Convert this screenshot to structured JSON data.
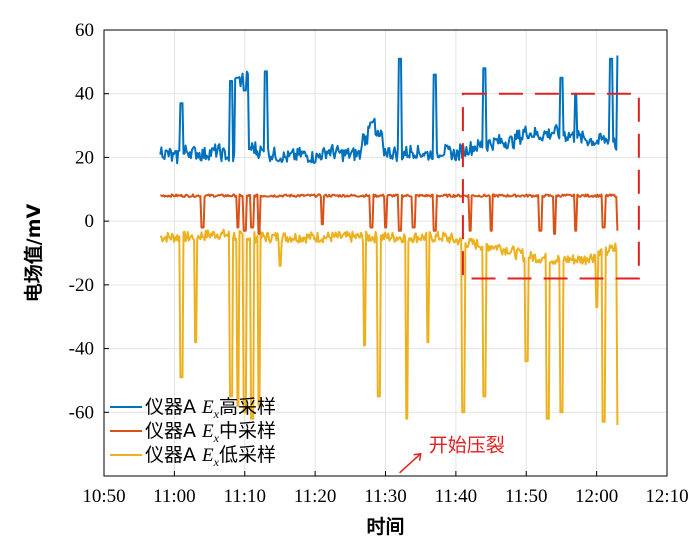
{
  "chart_data": {
    "type": "line",
    "title": "",
    "xlabel": "时间",
    "ylabel": "电场值/mV",
    "xlim": [
      "10:50",
      "12:10"
    ],
    "ylim": [
      -80,
      60
    ],
    "x_ticks": [
      "10:50",
      "11:00",
      "11:10",
      "11:20",
      "11:30",
      "11:40",
      "11:50",
      "12:00",
      "12:10"
    ],
    "y_ticks": [
      "60",
      "40",
      "20",
      "0",
      "-20",
      "-40",
      "-60"
    ],
    "grid": true,
    "legend_position": "bottom-left",
    "series": [
      {
        "legend_prefix": "仪器A",
        "legend_var": "E",
        "legend_sub": "x",
        "legend_suffix": "高采样",
        "color": "#0072BD",
        "baseline_note": "~22 mV noisy baseline, rising to ~27 mV after 11:43",
        "x": [
          "10:58",
          "11:00",
          "11:02",
          "11:04",
          "11:06",
          "11:08",
          "11:09",
          "11:10",
          "11:11",
          "11:12",
          "11:14",
          "11:16",
          "11:18",
          "11:20",
          "11:22",
          "11:24",
          "11:26",
          "11:28",
          "11:30",
          "11:32",
          "11:34",
          "11:36",
          "11:38",
          "11:40",
          "11:42",
          "11:44",
          "11:46",
          "11:48",
          "11:50",
          "11:52",
          "11:54",
          "11:56",
          "11:58",
          "12:00",
          "12:02",
          "12:03"
        ],
        "y": [
          22,
          20,
          22,
          21,
          22,
          20,
          44,
          45,
          23,
          22,
          21,
          20,
          21,
          20,
          22,
          21,
          21,
          31,
          22,
          21,
          22,
          21,
          22,
          21,
          23,
          24,
          25,
          25,
          28,
          27,
          28,
          27,
          26,
          25,
          26,
          24
        ],
        "spikes": [
          {
            "x": "11:01",
            "y": 37
          },
          {
            "x": "11:08",
            "y": 44
          },
          {
            "x": "11:09",
            "y": 45
          },
          {
            "x": "11:10",
            "y": 41
          },
          {
            "x": "11:13",
            "y": 47
          },
          {
            "x": "11:28",
            "y": 31
          },
          {
            "x": "11:32",
            "y": 51
          },
          {
            "x": "11:37",
            "y": 46
          },
          {
            "x": "11:44",
            "y": 48
          },
          {
            "x": "11:55",
            "y": 45
          },
          {
            "x": "11:57",
            "y": 40
          },
          {
            "x": "12:02",
            "y": 51
          },
          {
            "x": "12:03",
            "y": 52
          }
        ]
      },
      {
        "legend_prefix": "仪器A",
        "legend_var": "E",
        "legend_sub": "x",
        "legend_suffix": "中采样",
        "color": "#D95319",
        "baseline": 8,
        "x_start": "10:58",
        "x_end": "12:03",
        "dips": [
          {
            "x": "11:04",
            "y": -2
          },
          {
            "x": "11:09",
            "y": -2
          },
          {
            "x": "11:10",
            "y": -3
          },
          {
            "x": "11:11",
            "y": -2
          },
          {
            "x": "11:12",
            "y": -4
          },
          {
            "x": "11:21",
            "y": -1
          },
          {
            "x": "11:28",
            "y": -2
          },
          {
            "x": "11:30",
            "y": -2
          },
          {
            "x": "11:32",
            "y": -3
          },
          {
            "x": "11:34",
            "y": -2
          },
          {
            "x": "11:37",
            "y": -3
          },
          {
            "x": "11:42",
            "y": -3
          },
          {
            "x": "11:45",
            "y": -3
          },
          {
            "x": "11:52",
            "y": -3
          },
          {
            "x": "11:54",
            "y": -4
          },
          {
            "x": "11:57",
            "y": -3
          },
          {
            "x": "12:01",
            "y": -2
          },
          {
            "x": "12:03",
            "y": -3
          }
        ]
      },
      {
        "legend_prefix": "仪器A",
        "legend_var": "E",
        "legend_sub": "x",
        "legend_suffix": "低采样",
        "color": "#EDB120",
        "x": [
          "10:58",
          "11:02",
          "11:06",
          "11:10",
          "11:14",
          "11:18",
          "11:22",
          "11:26",
          "11:30",
          "11:34",
          "11:38",
          "11:42",
          "11:46",
          "11:50",
          "11:54",
          "11:58",
          "12:02",
          "12:03"
        ],
        "y": [
          -5,
          -5,
          -4,
          -5,
          -5,
          -5,
          -5,
          -5,
          -5,
          -5,
          -5,
          -7,
          -8,
          -11,
          -12,
          -12,
          -9,
          -8
        ],
        "dips": [
          {
            "x": "11:01",
            "y": -49
          },
          {
            "x": "11:03",
            "y": -38
          },
          {
            "x": "11:08",
            "y": -55
          },
          {
            "x": "11:09",
            "y": -58
          },
          {
            "x": "11:10",
            "y": -60
          },
          {
            "x": "11:11",
            "y": -62
          },
          {
            "x": "11:12",
            "y": -58
          },
          {
            "x": "11:15",
            "y": -14
          },
          {
            "x": "11:27",
            "y": -39
          },
          {
            "x": "11:29",
            "y": -55
          },
          {
            "x": "11:33",
            "y": -62
          },
          {
            "x": "11:36",
            "y": -38
          },
          {
            "x": "11:41",
            "y": -60
          },
          {
            "x": "11:44",
            "y": -55
          },
          {
            "x": "11:50",
            "y": -44
          },
          {
            "x": "11:53",
            "y": -62
          },
          {
            "x": "11:55",
            "y": -60
          },
          {
            "x": "12:00",
            "y": -27
          },
          {
            "x": "12:01",
            "y": -63
          },
          {
            "x": "12:03",
            "y": -64
          }
        ]
      }
    ],
    "annotations": [
      {
        "text": "开始压裂",
        "color": "#E02020",
        "arrow_from": [
          "11:32",
          -79
        ],
        "arrow_to": [
          "11:35",
          -73
        ]
      },
      {
        "box": {
          "x0": "11:41",
          "x1": "12:06",
          "y0": -18,
          "y1": 40
        },
        "color": "#E02020",
        "style": "dashed"
      }
    ]
  }
}
